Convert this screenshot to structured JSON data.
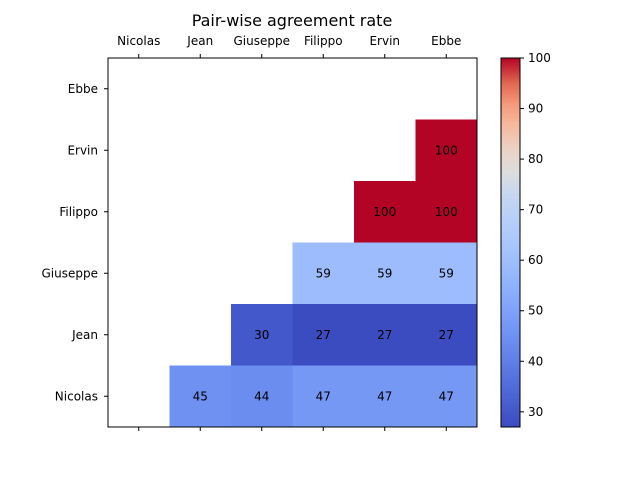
{
  "chart_data": {
    "type": "heatmap",
    "title": "Pair-wise agreement rate",
    "x_labels": [
      "Nicolas",
      "Jean",
      "Giuseppe",
      "Filippo",
      "Ervin",
      "Ebbe"
    ],
    "y_labels": [
      "Ebbe",
      "Ervin",
      "Filippo",
      "Giuseppe",
      "Jean",
      "Nicolas"
    ],
    "values": [
      [
        null,
        null,
        null,
        null,
        null,
        null
      ],
      [
        null,
        null,
        null,
        null,
        null,
        100
      ],
      [
        null,
        null,
        null,
        null,
        100,
        100
      ],
      [
        null,
        null,
        null,
        59,
        59,
        59
      ],
      [
        null,
        null,
        30,
        27,
        27,
        27
      ],
      [
        null,
        45,
        44,
        47,
        47,
        47
      ]
    ],
    "colormap": "coolwarm",
    "color_range": [
      27,
      100
    ],
    "colorbar_ticks": [
      30,
      40,
      50,
      60,
      70,
      80,
      90,
      100
    ],
    "x_axis_position": "top",
    "grid": false
  }
}
